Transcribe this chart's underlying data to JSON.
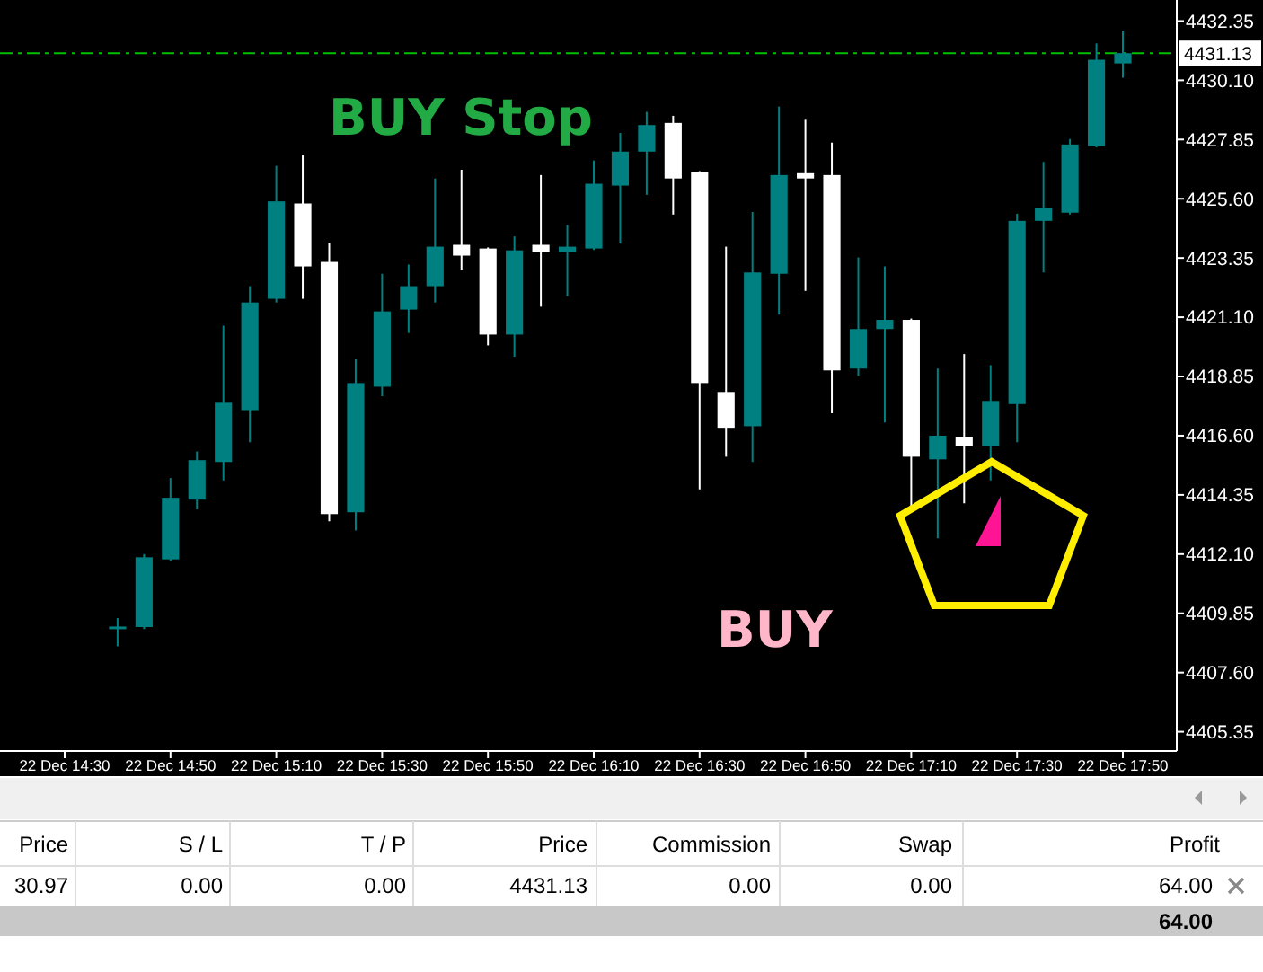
{
  "chart_data": {
    "type": "candlestick",
    "categories": [
      "22 Dec 14:30",
      null,
      null,
      null,
      "22 Dec 14:50",
      null,
      null,
      null,
      "22 Dec 15:10",
      null,
      null,
      null,
      "22 Dec 15:30",
      null,
      null,
      null,
      "22 Dec 15:50",
      null,
      null,
      null,
      "22 Dec 16:10",
      null,
      null,
      null,
      "22 Dec 16:30",
      null,
      null,
      null,
      "22 Dec 16:50",
      null,
      null,
      null,
      "22 Dec 17:10",
      null,
      null,
      null,
      "22 Dec 17:30",
      null,
      null,
      null,
      "22 Dec 17:50"
    ],
    "ohlc": [
      null,
      null,
      [
        4409.3,
        4409.67,
        4408.6,
        4409.35
      ],
      [
        4409.33,
        4412.1,
        4409.25,
        4411.98
      ],
      [
        4411.9,
        4414.99,
        4411.85,
        4414.24
      ],
      [
        4414.17,
        4416.0,
        4413.8,
        4415.67
      ],
      [
        4415.6,
        4420.78,
        4414.9,
        4417.85
      ],
      [
        4417.57,
        4422.28,
        4416.35,
        4421.66
      ],
      [
        4421.8,
        4426.85,
        4421.66,
        4425.5
      ],
      [
        4425.42,
        4427.26,
        4421.8,
        4423.03
      ],
      [
        4423.2,
        4423.9,
        4413.35,
        4413.62
      ],
      [
        4413.69,
        4419.5,
        4413.0,
        4418.6
      ],
      [
        4418.46,
        4422.75,
        4418.1,
        4421.32
      ],
      [
        4421.39,
        4423.1,
        4420.5,
        4422.28
      ],
      [
        4422.28,
        4426.37,
        4421.66,
        4423.78
      ],
      [
        4423.85,
        4426.7,
        4422.9,
        4423.44
      ],
      [
        4423.71,
        4423.75,
        4420.03,
        4420.44
      ],
      [
        4420.44,
        4424.17,
        4419.6,
        4423.64
      ],
      [
        4423.85,
        4426.5,
        4421.5,
        4423.58
      ],
      [
        4423.58,
        4424.6,
        4421.9,
        4423.78
      ],
      [
        4423.71,
        4427.05,
        4423.65,
        4426.17
      ],
      [
        4426.1,
        4428.1,
        4423.9,
        4427.39
      ],
      [
        4427.39,
        4428.9,
        4425.75,
        4428.4
      ],
      [
        4428.48,
        4428.75,
        4425.0,
        4426.37
      ],
      [
        4426.6,
        4426.65,
        4414.56,
        4418.6
      ],
      [
        4418.26,
        4423.78,
        4415.8,
        4416.9
      ],
      [
        4416.96,
        4425.1,
        4415.6,
        4422.8
      ],
      [
        4422.75,
        4429.1,
        4421.2,
        4426.5
      ],
      [
        4426.57,
        4428.6,
        4422.1,
        4426.37
      ],
      [
        4426.5,
        4427.73,
        4417.45,
        4419.08
      ],
      [
        4419.15,
        4423.37,
        4418.87,
        4420.65
      ],
      [
        4420.65,
        4423.03,
        4417.1,
        4421.0
      ],
      [
        4421.0,
        4421.05,
        4413.76,
        4415.8
      ],
      [
        4415.7,
        4419.15,
        4412.7,
        4416.6
      ],
      [
        4416.55,
        4419.7,
        4414.03,
        4416.2
      ],
      [
        4416.2,
        4419.28,
        4414.9,
        4417.92
      ],
      [
        4417.8,
        4425.03,
        4416.35,
        4424.76
      ],
      [
        4424.76,
        4427.0,
        4422.8,
        4425.24
      ],
      [
        4425.07,
        4427.87,
        4425.0,
        4427.66
      ],
      [
        4427.6,
        4431.5,
        4427.55,
        4430.88
      ],
      [
        4430.74,
        4431.98,
        4430.2,
        4431.13
      ]
    ],
    "colors": [
      null,
      null,
      "#008080",
      "#008080",
      "#008080",
      "#008080",
      "#008080",
      "#008080",
      "#008080",
      "#ffffff",
      "#ffffff",
      "#008080",
      "#008080",
      "#008080",
      "#008080",
      "#ffffff",
      "#ffffff",
      "#008080",
      "#ffffff",
      "#008080",
      "#008080",
      "#008080",
      "#008080",
      "#ffffff",
      "#ffffff",
      "#ffffff",
      "#008080",
      "#008080",
      "#ffffff",
      "#ffffff",
      "#008080",
      "#008080",
      "#ffffff",
      "#008080",
      "#ffffff",
      "#008080",
      "#008080",
      "#008080",
      "#008080",
      "#008080",
      "#008080"
    ],
    "ylim": [
      4404.62,
      4433.15
    ],
    "yticks": [
      4405.35,
      {
        "value": 4407.6,
        "label": "4407.60"
      },
      4409.85,
      {
        "value": 4412.1,
        "label": "4412.10"
      },
      4414.35,
      {
        "value": 4416.6,
        "label": "4416.60"
      },
      4418.85,
      {
        "value": 4421.1,
        "label": "4421.10"
      },
      4423.35,
      {
        "value": 4425.6,
        "label": "4425.60"
      },
      4427.85,
      {
        "value": 4430.1,
        "label": "4430.10"
      },
      4432.35
    ],
    "ref_lines": [
      {
        "axis": "y",
        "value": 4431.13,
        "label": "4431.13",
        "color": "#00c000",
        "line_style": "dashed"
      }
    ],
    "annotations": [
      "BUY Stop",
      "BUY",
      "Price",
      "S / L",
      "T / P",
      "Price",
      "Commission",
      "Swap",
      "Profit",
      "30.97",
      "0.00",
      "0.00",
      "4431.13",
      "0.00",
      "0.00",
      "64.00",
      "64.00"
    ]
  }
}
